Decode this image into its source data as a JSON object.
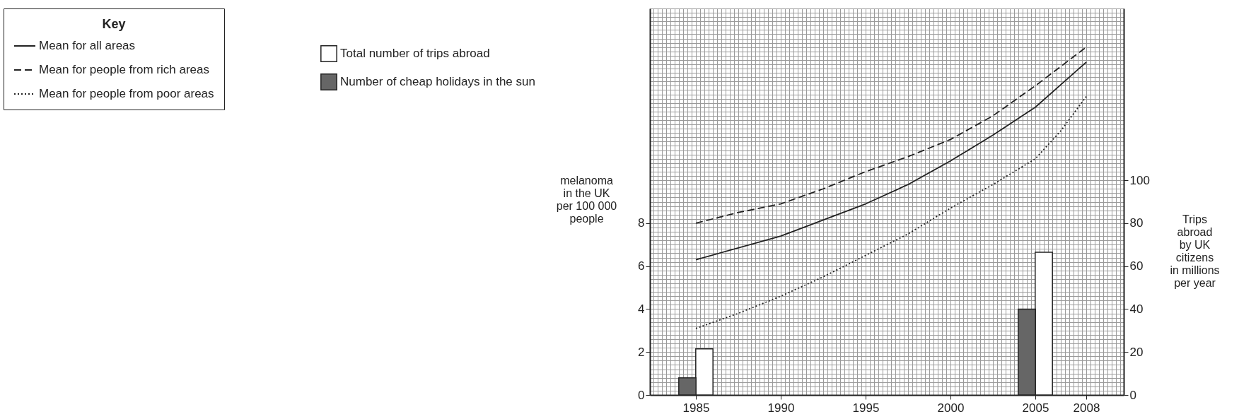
{
  "chart_data": {
    "type": "line",
    "legend_title": "Key",
    "ylabel": "melanoma\nin the UK\nper 100 000\npeople",
    "y2label": "Trips\nabroad\nby UK\ncitizens\nin millions\nper year",
    "xlim": [
      1982.5,
      2010
    ],
    "xticks": [
      1985,
      1990,
      1995,
      2000,
      2005,
      2008
    ],
    "ylim": [
      0,
      18
    ],
    "yticks": [
      0,
      2,
      4,
      6,
      8
    ],
    "y2lim": [
      0,
      180
    ],
    "y2ticks": [
      0,
      20,
      40,
      60,
      80,
      100
    ],
    "grid": true,
    "legend": "top left",
    "series": [
      {
        "name": "Mean for all areas",
        "line_style": "solid",
        "color": "#222222",
        "x": [
          1985,
          1990,
          1995,
          1997.5,
          2000,
          2002.5,
          2005,
          2008
        ],
        "values": [
          6.3,
          7.4,
          8.9,
          9.8,
          10.9,
          12.1,
          13.4,
          15.5
        ]
      },
      {
        "name": "Mean for people from rich areas",
        "line_style": "dashed",
        "color": "#222222",
        "x": [
          1985,
          1987.5,
          1990,
          1992.5,
          1995,
          1997.5,
          2000,
          2002.5,
          2005,
          2008
        ],
        "values": [
          8.0,
          8.5,
          8.9,
          9.6,
          10.4,
          11.1,
          11.9,
          13.0,
          14.4,
          16.2
        ]
      },
      {
        "name": "Mean for people from poor areas",
        "line_style": "dotted",
        "color": "#222222",
        "x": [
          1985,
          1987.5,
          1990,
          1992.5,
          1995,
          1997.5,
          2000,
          2002.5,
          2005,
          2006.5,
          2008
        ],
        "values": [
          3.1,
          3.8,
          4.6,
          5.5,
          6.5,
          7.5,
          8.7,
          9.8,
          11.0,
          12.3,
          13.9
        ]
      },
      {
        "name": "Total number of trips abroad",
        "type": "bar",
        "axis": "y2",
        "color": "#ffffff",
        "x": [
          1985.5,
          2005.5
        ],
        "values": [
          21.5,
          66.5
        ]
      },
      {
        "name": "Number of cheap holidays in the sun",
        "type": "bar",
        "axis": "y2",
        "color": "#666666",
        "x": [
          1984.5,
          2004.5
        ],
        "values": [
          8,
          40
        ]
      }
    ]
  }
}
